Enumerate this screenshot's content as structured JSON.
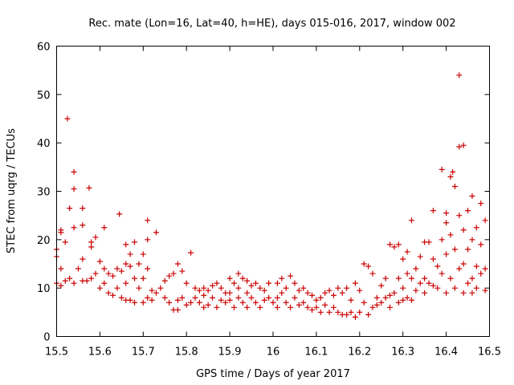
{
  "chart_data": {
    "type": "scatter",
    "title": "Rec. mate (Lon=16, Lat=40, h=HE), days 015-016, 2017, window 002",
    "xlabel": "GPS time / Days of year 2017",
    "ylabel": "STEC from uqrg / TECUs",
    "xlim": [
      15.5,
      16.5
    ],
    "ylim": [
      0,
      60
    ],
    "xticks": [
      15.5,
      15.6,
      15.7,
      15.8,
      15.9,
      16,
      16.1,
      16.2,
      16.3,
      16.4,
      16.5
    ],
    "xtick_labels": [
      "15.5",
      "15.6",
      "15.7",
      "15.8",
      "15.9",
      "16",
      "16.1",
      "16.2",
      "16.3",
      "16.4",
      "16.5"
    ],
    "yticks": [
      0,
      10,
      20,
      30,
      40,
      50,
      60
    ],
    "ytick_labels": [
      "0",
      "10",
      "20",
      "30",
      "40",
      "50",
      "60"
    ],
    "grid": false,
    "marker": "plus",
    "color": "#cc0000",
    "points": [
      [
        15.5,
        18
      ],
      [
        15.5,
        16.5
      ],
      [
        15.5,
        11
      ],
      [
        15.51,
        21.5
      ],
      [
        15.51,
        22
      ],
      [
        15.51,
        14
      ],
      [
        15.51,
        10.5
      ],
      [
        15.52,
        19.5
      ],
      [
        15.52,
        11.5
      ],
      [
        15.525,
        45
      ],
      [
        15.53,
        26.5
      ],
      [
        15.53,
        12
      ],
      [
        15.54,
        34
      ],
      [
        15.54,
        30.5
      ],
      [
        15.54,
        22.5
      ],
      [
        15.54,
        11
      ],
      [
        15.55,
        14
      ],
      [
        15.56,
        26.5
      ],
      [
        15.56,
        23
      ],
      [
        15.56,
        16
      ],
      [
        15.56,
        11.5
      ],
      [
        15.57,
        11.5
      ],
      [
        15.575,
        30.7
      ],
      [
        15.58,
        19.5
      ],
      [
        15.58,
        18.5
      ],
      [
        15.58,
        12
      ],
      [
        15.59,
        20.5
      ],
      [
        15.59,
        13
      ],
      [
        15.6,
        15.5
      ],
      [
        15.6,
        10
      ],
      [
        15.61,
        22.5
      ],
      [
        15.61,
        14
      ],
      [
        15.61,
        11
      ],
      [
        15.62,
        13
      ],
      [
        15.62,
        9
      ],
      [
        15.63,
        12.5
      ],
      [
        15.63,
        8.5
      ],
      [
        15.64,
        14
      ],
      [
        15.64,
        10
      ],
      [
        15.645,
        25.3
      ],
      [
        15.65,
        13.5
      ],
      [
        15.65,
        8
      ],
      [
        15.66,
        19
      ],
      [
        15.66,
        15
      ],
      [
        15.66,
        11
      ],
      [
        15.66,
        7.5
      ],
      [
        15.67,
        17
      ],
      [
        15.67,
        14.5
      ],
      [
        15.67,
        7.5
      ],
      [
        15.68,
        19.5
      ],
      [
        15.68,
        12
      ],
      [
        15.68,
        7
      ],
      [
        15.69,
        15
      ],
      [
        15.69,
        10
      ],
      [
        15.7,
        17
      ],
      [
        15.7,
        12
      ],
      [
        15.7,
        7
      ],
      [
        15.71,
        24
      ],
      [
        15.71,
        20
      ],
      [
        15.71,
        14
      ],
      [
        15.71,
        8
      ],
      [
        15.72,
        9.5
      ],
      [
        15.72,
        7.5
      ],
      [
        15.73,
        21.5
      ],
      [
        15.73,
        9
      ],
      [
        15.74,
        10
      ],
      [
        15.75,
        11.5
      ],
      [
        15.75,
        8
      ],
      [
        15.76,
        12.5
      ],
      [
        15.76,
        7
      ],
      [
        15.77,
        13
      ],
      [
        15.77,
        5.5
      ],
      [
        15.78,
        15
      ],
      [
        15.78,
        7.5
      ],
      [
        15.78,
        5.5
      ],
      [
        15.79,
        13.5
      ],
      [
        15.79,
        8
      ],
      [
        15.8,
        11
      ],
      [
        15.8,
        6.5
      ],
      [
        15.81,
        17.3
      ],
      [
        15.81,
        7
      ],
      [
        15.82,
        10
      ],
      [
        15.82,
        8
      ],
      [
        15.83,
        9.5
      ],
      [
        15.83,
        7
      ],
      [
        15.84,
        10
      ],
      [
        15.84,
        8.5
      ],
      [
        15.84,
        6
      ],
      [
        15.85,
        9.5
      ],
      [
        15.85,
        6.5
      ],
      [
        15.86,
        10.5
      ],
      [
        15.86,
        8
      ],
      [
        15.87,
        11
      ],
      [
        15.87,
        6
      ],
      [
        15.88,
        10
      ],
      [
        15.88,
        7.5
      ],
      [
        15.89,
        9
      ],
      [
        15.89,
        7
      ],
      [
        15.9,
        12
      ],
      [
        15.9,
        9
      ],
      [
        15.9,
        7.5
      ],
      [
        15.91,
        11
      ],
      [
        15.91,
        6
      ],
      [
        15.92,
        13
      ],
      [
        15.92,
        10
      ],
      [
        15.92,
        8
      ],
      [
        15.93,
        12
      ],
      [
        15.93,
        7
      ],
      [
        15.94,
        11.5
      ],
      [
        15.94,
        9
      ],
      [
        15.94,
        6
      ],
      [
        15.95,
        10.5
      ],
      [
        15.95,
        8
      ],
      [
        15.96,
        11
      ],
      [
        15.96,
        7
      ],
      [
        15.97,
        10
      ],
      [
        15.97,
        6
      ],
      [
        15.98,
        9.5
      ],
      [
        15.98,
        7.5
      ],
      [
        15.99,
        11
      ],
      [
        15.99,
        8
      ],
      [
        16.0,
        7
      ],
      [
        16.01,
        11
      ],
      [
        16.01,
        8
      ],
      [
        16.01,
        6
      ],
      [
        16.02,
        12
      ],
      [
        16.02,
        9
      ],
      [
        16.03,
        10
      ],
      [
        16.03,
        7
      ],
      [
        16.04,
        12.5
      ],
      [
        16.04,
        6
      ],
      [
        16.05,
        11
      ],
      [
        16.05,
        8
      ],
      [
        16.06,
        9.5
      ],
      [
        16.06,
        6.5
      ],
      [
        16.07,
        10
      ],
      [
        16.07,
        7
      ],
      [
        16.08,
        9
      ],
      [
        16.08,
        6
      ],
      [
        16.09,
        8.5
      ],
      [
        16.09,
        5.5
      ],
      [
        16.1,
        7.5
      ],
      [
        16.1,
        6
      ],
      [
        16.11,
        8
      ],
      [
        16.11,
        5
      ],
      [
        16.12,
        9
      ],
      [
        16.12,
        6.5
      ],
      [
        16.13,
        9.5
      ],
      [
        16.13,
        5
      ],
      [
        16.14,
        8.5
      ],
      [
        16.14,
        6
      ],
      [
        16.15,
        10
      ],
      [
        16.15,
        5
      ],
      [
        16.16,
        9
      ],
      [
        16.16,
        4.5
      ],
      [
        16.17,
        10
      ],
      [
        16.17,
        4.5
      ],
      [
        16.18,
        7.5
      ],
      [
        16.18,
        5
      ],
      [
        16.19,
        11
      ],
      [
        16.19,
        4
      ],
      [
        16.2,
        9.5
      ],
      [
        16.2,
        5
      ],
      [
        16.21,
        15
      ],
      [
        16.21,
        7
      ],
      [
        16.22,
        14.5
      ],
      [
        16.22,
        4.5
      ],
      [
        16.23,
        13
      ],
      [
        16.23,
        6
      ],
      [
        16.24,
        8
      ],
      [
        16.24,
        6.5
      ],
      [
        16.25,
        10.5
      ],
      [
        16.25,
        7
      ],
      [
        16.26,
        12
      ],
      [
        16.26,
        8
      ],
      [
        16.27,
        19
      ],
      [
        16.27,
        8.5
      ],
      [
        16.27,
        6
      ],
      [
        16.28,
        18.5
      ],
      [
        16.28,
        9
      ],
      [
        16.29,
        19
      ],
      [
        16.29,
        12
      ],
      [
        16.29,
        7
      ],
      [
        16.3,
        16
      ],
      [
        16.3,
        10
      ],
      [
        16.3,
        7.5
      ],
      [
        16.31,
        17.5
      ],
      [
        16.31,
        13
      ],
      [
        16.31,
        8
      ],
      [
        16.32,
        24
      ],
      [
        16.32,
        12
      ],
      [
        16.32,
        7.5
      ],
      [
        16.33,
        14
      ],
      [
        16.33,
        9.5
      ],
      [
        16.34,
        16.5
      ],
      [
        16.34,
        11
      ],
      [
        16.35,
        19.5
      ],
      [
        16.35,
        12
      ],
      [
        16.35,
        9
      ],
      [
        16.36,
        19.5
      ],
      [
        16.36,
        11
      ],
      [
        16.37,
        26
      ],
      [
        16.37,
        16
      ],
      [
        16.37,
        10.5
      ],
      [
        16.38,
        14.5
      ],
      [
        16.38,
        10
      ],
      [
        16.39,
        34.5
      ],
      [
        16.39,
        20
      ],
      [
        16.39,
        13
      ],
      [
        16.4,
        25.5
      ],
      [
        16.4,
        23.5
      ],
      [
        16.4,
        17
      ],
      [
        16.4,
        9
      ],
      [
        16.41,
        33
      ],
      [
        16.41,
        21
      ],
      [
        16.41,
        12
      ],
      [
        16.415,
        34
      ],
      [
        16.42,
        31
      ],
      [
        16.42,
        18
      ],
      [
        16.42,
        10
      ],
      [
        16.43,
        54
      ],
      [
        16.43,
        39.2
      ],
      [
        16.43,
        25
      ],
      [
        16.43,
        14
      ],
      [
        16.44,
        39.5
      ],
      [
        16.44,
        22
      ],
      [
        16.44,
        15
      ],
      [
        16.44,
        9
      ],
      [
        16.45,
        26
      ],
      [
        16.45,
        18
      ],
      [
        16.45,
        11
      ],
      [
        16.46,
        29
      ],
      [
        16.46,
        20
      ],
      [
        16.46,
        12
      ],
      [
        16.46,
        9
      ],
      [
        16.47,
        22.5
      ],
      [
        16.47,
        14.5
      ],
      [
        16.47,
        10
      ],
      [
        16.48,
        27.5
      ],
      [
        16.48,
        19
      ],
      [
        16.48,
        13
      ],
      [
        16.49,
        24
      ],
      [
        16.49,
        14
      ],
      [
        16.49,
        9.5
      ]
    ]
  }
}
